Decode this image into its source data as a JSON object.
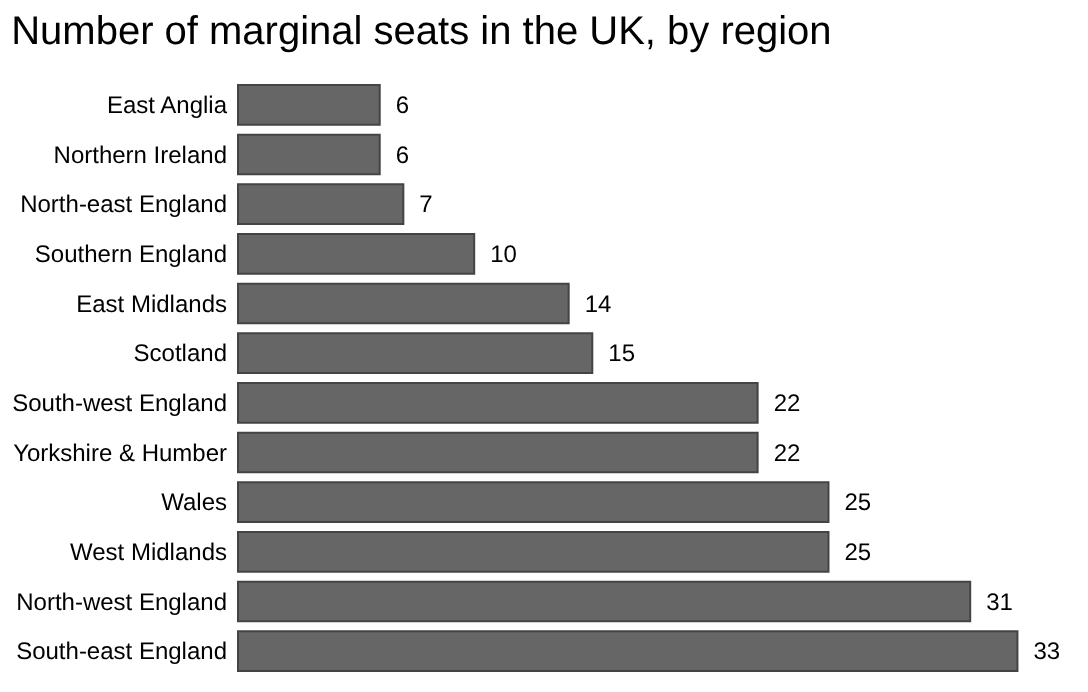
{
  "chart_data": {
    "type": "bar",
    "orientation": "horizontal",
    "title": "Number of marginal seats in the UK, by region",
    "categories": [
      "East Anglia",
      "Northern Ireland",
      "North-east England",
      "Southern England",
      "East Midlands",
      "Scotland",
      "South-west England",
      "Yorkshire & Humber",
      "Wales",
      "West Midlands",
      "North-west England",
      "South-east England"
    ],
    "values": [
      6,
      6,
      7,
      10,
      14,
      15,
      22,
      22,
      25,
      25,
      31,
      33
    ],
    "color": "#666666",
    "data_labels": true,
    "grid": false
  }
}
